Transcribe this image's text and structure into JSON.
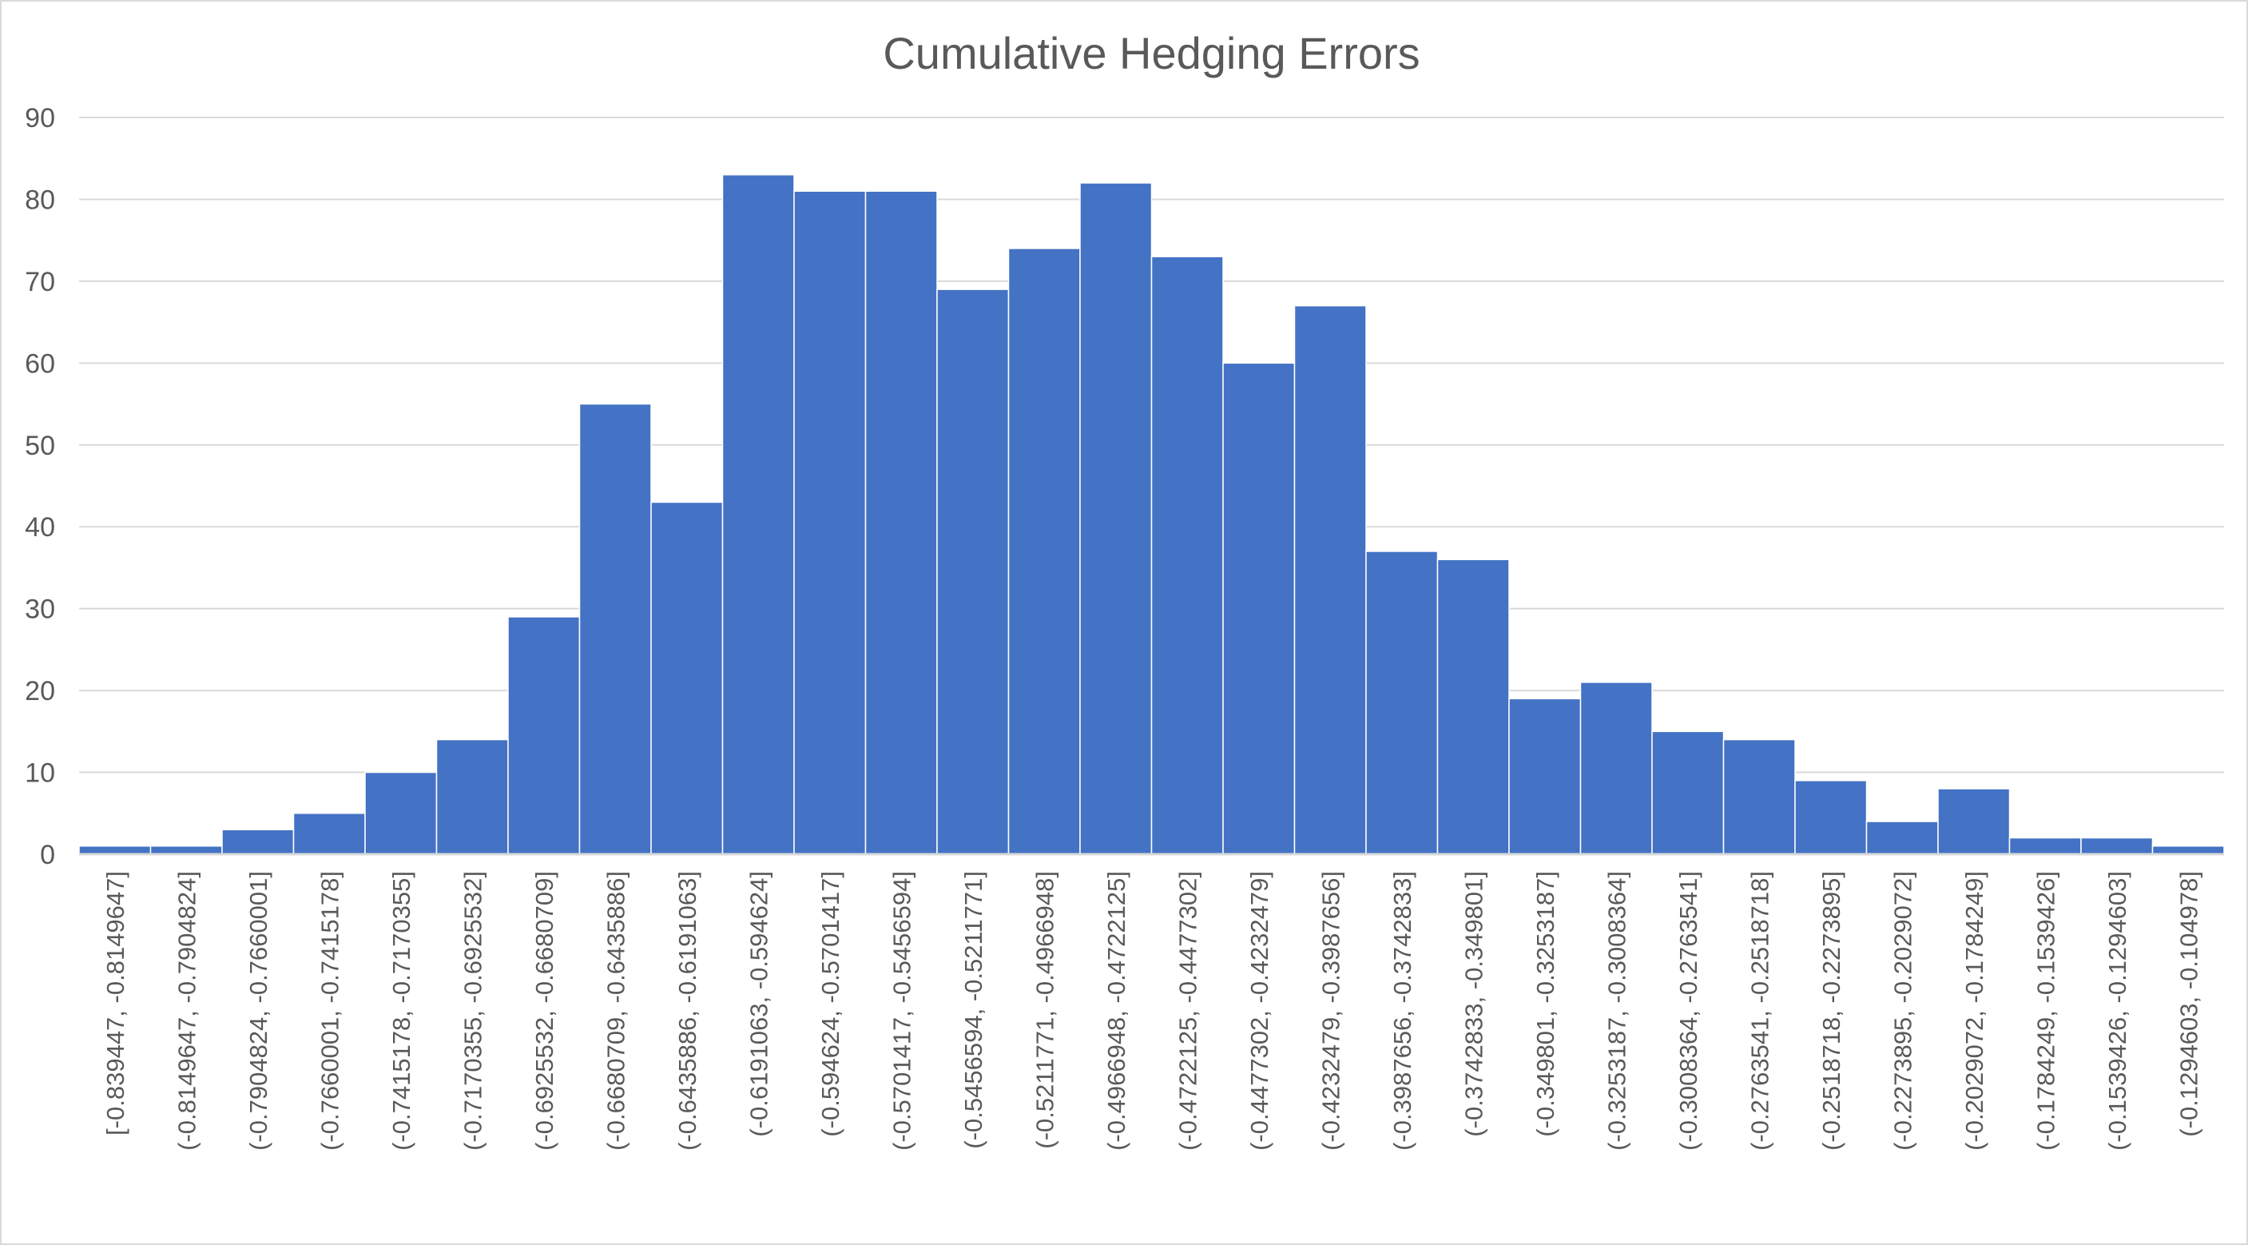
{
  "chart_data": {
    "type": "bar",
    "title": "Cumulative Hedging Errors",
    "xlabel": "",
    "ylabel": "",
    "ylim": [
      0,
      90
    ],
    "y_ticks": [
      "0",
      "10",
      "20",
      "30",
      "40",
      "50",
      "60",
      "70",
      "80",
      "90"
    ],
    "grid": true,
    "legend": "none",
    "bar_color": "#4472C4",
    "categories": [
      "[-0.839447, -0.8149647]",
      "(-0.8149647, -0.7904824]",
      "(-0.7904824, -0.7660001]",
      "(-0.7660001, -0.7415178]",
      "(-0.7415178, -0.7170355]",
      "(-0.7170355, -0.6925532]",
      "(-0.6925532, -0.6680709]",
      "(-0.6680709, -0.6435886]",
      "(-0.6435886, -0.6191063]",
      "(-0.6191063, -0.594624]",
      "(-0.594624, -0.5701417]",
      "(-0.5701417, -0.5456594]",
      "(-0.5456594, -0.5211771]",
      "(-0.5211771, -0.4966948]",
      "(-0.4966948, -0.4722125]",
      "(-0.4722125, -0.4477302]",
      "(-0.4477302, -0.4232479]",
      "(-0.4232479, -0.3987656]",
      "(-0.3987656, -0.3742833]",
      "(-0.3742833, -0.349801]",
      "(-0.349801, -0.3253187]",
      "(-0.3253187, -0.3008364]",
      "(-0.3008364, -0.2763541]",
      "(-0.2763541, -0.2518718]",
      "(-0.2518718, -0.2273895]",
      "(-0.2273895, -0.2029072]",
      "(-0.2029072, -0.1784249]",
      "(-0.1784249, -0.1539426]",
      "(-0.1539426, -0.1294603]",
      "(-0.1294603, -0.104978]"
    ],
    "values": [
      1,
      1,
      3,
      5,
      10,
      14,
      29,
      55,
      43,
      83,
      81,
      81,
      69,
      74,
      82,
      73,
      60,
      67,
      37,
      36,
      19,
      21,
      15,
      14,
      9,
      4,
      8,
      2,
      2,
      1
    ]
  }
}
